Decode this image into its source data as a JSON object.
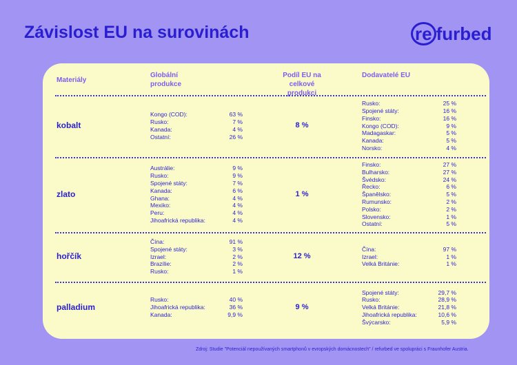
{
  "header": {
    "title": "Závislost EU na surovinách",
    "logo": {
      "circled": "re",
      "rest": "furbed"
    }
  },
  "table": {
    "columns": [
      "Materiály",
      "Globální\nprodukce",
      "Podíl EU na\ncelkové produkci",
      "Dodavatelé EU"
    ],
    "rows": [
      {
        "material": "kobalt",
        "global": [
          [
            "Kongo (COD):",
            "63 %"
          ],
          [
            "Rusko:",
            "7 %"
          ],
          [
            "Kanada:",
            "4 %"
          ],
          [
            "Ostatní:",
            "26 %"
          ]
        ],
        "eu_share": "8 %",
        "suppliers": [
          [
            "Rusko:",
            "25 %"
          ],
          [
            "Spojené státy:",
            "16 %"
          ],
          [
            "Finsko:",
            "16 %"
          ],
          [
            "Kongo (COD):",
            "9 %"
          ],
          [
            "Madagaskar:",
            "5 %"
          ],
          [
            "Kanada:",
            "5 %"
          ],
          [
            "Norsko:",
            "4 %"
          ]
        ]
      },
      {
        "material": "zlato",
        "global": [
          [
            "Austrálie:",
            "9 %"
          ],
          [
            "Rusko:",
            "9 %"
          ],
          [
            "Spojené státy:",
            "7 %"
          ],
          [
            "Kanada:",
            "6 %"
          ],
          [
            "Ghana:",
            "4 %"
          ],
          [
            "Mexiko:",
            "4 %"
          ],
          [
            "Peru:",
            "4 %"
          ],
          [
            "Jihoafrická republika:",
            "4 %"
          ]
        ],
        "eu_share": "1 %",
        "suppliers": [
          [
            "Finsko:",
            "27 %"
          ],
          [
            "Bulharsko:",
            "27 %"
          ],
          [
            "Švédsko:",
            "24 %"
          ],
          [
            "Řecko:",
            "6 %"
          ],
          [
            "Španělsko:",
            "5 %"
          ],
          [
            "Rumunsko:",
            "2 %"
          ],
          [
            "Polsko:",
            "2 %"
          ],
          [
            "Slovensko:",
            "1 %"
          ],
          [
            "Ostatní:",
            "5 %"
          ]
        ]
      },
      {
        "material": "hořčík",
        "global": [
          [
            "Čína:",
            "91 %"
          ],
          [
            "Spojené státy:",
            "3 %"
          ],
          [
            "Izrael:",
            "2 %"
          ],
          [
            "Brazílie:",
            "2 %"
          ],
          [
            "Rusko:",
            "1 %"
          ]
        ],
        "eu_share": "12 %",
        "suppliers": [
          [
            "Čína:",
            "97 %"
          ],
          [
            "Izrael:",
            "1 %"
          ],
          [
            "Velká Británie:",
            "1 %"
          ]
        ]
      },
      {
        "material": "palladium",
        "global": [
          [
            "Rusko:",
            "40 %"
          ],
          [
            "Jihoafrická republika:",
            "36 %"
          ],
          [
            "Kanada:",
            "9,9 %"
          ]
        ],
        "eu_share": "9 %",
        "suppliers": [
          [
            "Spojené státy:",
            "29,7 %"
          ],
          [
            "Rusko:",
            "28,9 %"
          ],
          [
            "Velká Británie:",
            "21,8 %"
          ],
          [
            "Jihoafrická republika:",
            "10,6 %"
          ],
          [
            "Švýcarsko:",
            "5,9 %"
          ]
        ]
      }
    ]
  },
  "footer": {
    "source": "Zdroj: Studie \"Potenciál nepoužívaných  smartphonů v evropských domácnostech\" / refurbed ve spolupráci s Fraunhofer Austria."
  }
}
